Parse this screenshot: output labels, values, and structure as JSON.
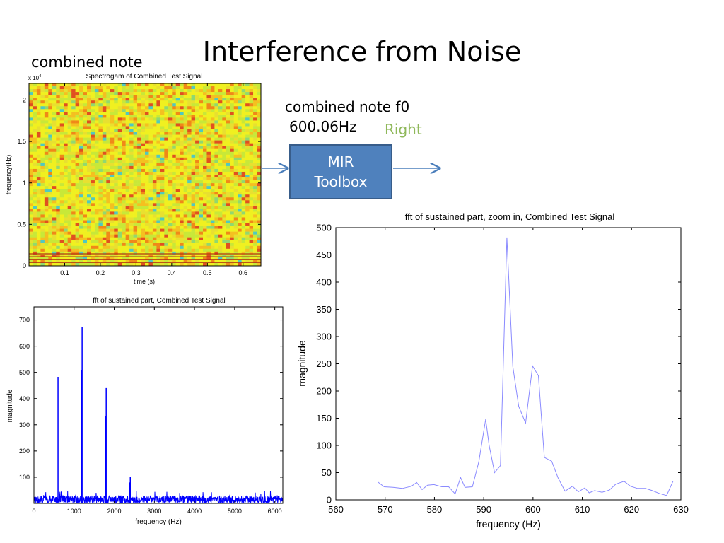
{
  "slide": {
    "title": "Interference from Noise",
    "combined_note_label": "combined note",
    "f0_label": "combined note f0",
    "f0_value": "600.06Hz",
    "verdict": "Right",
    "verdict_color": "#8fb85a",
    "mir_box_lines": [
      "MIR",
      "Toolbox"
    ],
    "mir_box_color": "#4f81bd"
  },
  "chart_data": [
    {
      "type": "heatmap",
      "title": "Spectrogam of Combined Test Signal",
      "xlabel": "time (s)",
      "ylabel": "frequency(Hz)",
      "y_exponent_label": "x 10",
      "y_exponent": "4",
      "xlim": [
        0,
        0.65
      ],
      "ylim": [
        0,
        2.2
      ],
      "xticks": [
        "0.1",
        "0.2",
        "0.3",
        "0.4",
        "0.5",
        "0.6"
      ],
      "yticks": [
        "0",
        "0.5",
        "1",
        "1.5",
        "2"
      ],
      "colors": [
        "#f0f020",
        "#c8e838",
        "#f4c020",
        "#f08818",
        "#e05020",
        "#90d870",
        "#50c8c0",
        "#e8e030"
      ],
      "low_freq_lines": [
        0.04,
        0.075,
        0.11,
        0.145
      ]
    },
    {
      "type": "line",
      "title": "fft of sustained part, Combined Test Signal",
      "xlabel": "frequency (Hz)",
      "ylabel": "magnitude",
      "xlim": [
        0,
        6200
      ],
      "ylim": [
        0,
        750
      ],
      "xticks": [
        "0",
        "1000",
        "2000",
        "3000",
        "4000",
        "5000",
        "6000"
      ],
      "yticks": [
        "100",
        "200",
        "300",
        "400",
        "500",
        "600",
        "700"
      ],
      "series_color": "#0000ff",
      "noise_floor": 30,
      "peaks": [
        {
          "x": 600,
          "y": 483
        },
        {
          "x": 1200,
          "y": 672
        },
        {
          "x": 1185,
          "y": 510
        },
        {
          "x": 1800,
          "y": 440
        },
        {
          "x": 1790,
          "y": 333
        },
        {
          "x": 1785,
          "y": 150
        },
        {
          "x": 2400,
          "y": 102
        },
        {
          "x": 2390,
          "y": 80
        }
      ]
    },
    {
      "type": "line",
      "title": "fft of sustained part, zoom in, Combined Test Signal",
      "xlabel": "frequency (Hz)",
      "ylabel": "magnitude",
      "xlim": [
        560,
        630
      ],
      "ylim": [
        0,
        500
      ],
      "xticks": [
        "560",
        "570",
        "580",
        "590",
        "600",
        "610",
        "620",
        "630"
      ],
      "yticks": [
        "0",
        "50",
        "100",
        "150",
        "200",
        "250",
        "300",
        "350",
        "400",
        "450",
        "500"
      ],
      "series_color": "#8a8aff",
      "x": [
        568.5,
        569.8,
        571.6,
        573.5,
        575.3,
        576.4,
        577.5,
        578.6,
        579.9,
        581.5,
        582.9,
        584.2,
        585.3,
        586.2,
        587.7,
        589,
        590.4,
        591.1,
        592.2,
        593.4,
        594.7,
        595.9,
        597.1,
        598.5,
        599.9,
        601.1,
        602.3,
        603.8,
        605.1,
        606.5,
        608,
        609.2,
        610.5,
        611.4,
        612.5,
        614,
        615.5,
        616.8,
        618.5,
        619.8,
        621.2,
        622.8,
        624.2,
        625.6,
        627.1,
        628.4
      ],
      "y": [
        33,
        24,
        23,
        21,
        25,
        32,
        19,
        27,
        28,
        24,
        24,
        11,
        41,
        23,
        24,
        70,
        148,
        100,
        50,
        63,
        482,
        245,
        172,
        141,
        246,
        228,
        78,
        71,
        40,
        16,
        25,
        15,
        22,
        13,
        17,
        14,
        18,
        29,
        34,
        25,
        21,
        21,
        17,
        12,
        8,
        34
      ]
    }
  ]
}
